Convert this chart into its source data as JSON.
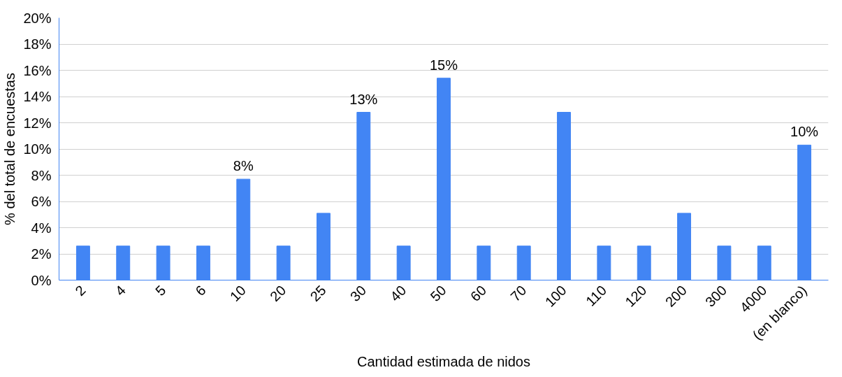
{
  "chart_data": {
    "type": "bar",
    "xlabel": "Cantidad estimada de nidos",
    "ylabel": "% del total de encuestas",
    "categories": [
      "2",
      "4",
      "5",
      "6",
      "10",
      "20",
      "25",
      "30",
      "40",
      "50",
      "60",
      "70",
      "100",
      "110",
      "120",
      "200",
      "300",
      "4000",
      "(en blanco)"
    ],
    "values": [
      2.6,
      2.6,
      2.6,
      2.6,
      7.7,
      2.6,
      5.1,
      12.8,
      2.6,
      15.4,
      2.6,
      2.6,
      12.8,
      2.6,
      2.6,
      5.1,
      2.6,
      2.6,
      10.3
    ],
    "value_labels": [
      null,
      null,
      null,
      null,
      "8%",
      null,
      null,
      "13%",
      null,
      "15%",
      null,
      null,
      null,
      null,
      null,
      null,
      null,
      null,
      "10%"
    ],
    "color": "#4285f4",
    "ylim": [
      0,
      20
    ],
    "yticks": [
      {
        "value": 0,
        "label": "0%"
      },
      {
        "value": 2,
        "label": "2%"
      },
      {
        "value": 4,
        "label": "4%"
      },
      {
        "value": 6,
        "label": "6%"
      },
      {
        "value": 8,
        "label": "8%"
      },
      {
        "value": 10,
        "label": "10%"
      },
      {
        "value": 12,
        "label": "12%"
      },
      {
        "value": 14,
        "label": "14%"
      },
      {
        "value": 16,
        "label": "16%"
      },
      {
        "value": 18,
        "label": "18%"
      },
      {
        "value": 20,
        "label": "20%"
      }
    ],
    "grid": "y"
  }
}
